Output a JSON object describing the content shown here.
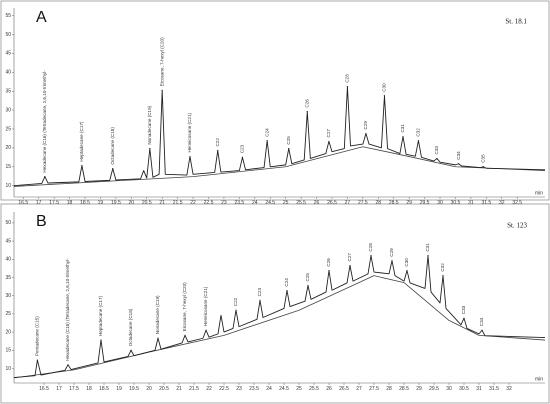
{
  "chart_data": [
    {
      "type": "line",
      "title": "A",
      "subtitle": "St. 18.1",
      "xlabel": "min",
      "xlim": [
        16.2,
        33.4
      ],
      "ylim": [
        7,
        57
      ],
      "xticks": [
        16.5,
        17,
        17.5,
        18,
        18.5,
        19,
        19.5,
        20,
        20.5,
        21,
        21.5,
        22,
        22.5,
        23,
        23.5,
        24,
        24.5,
        25,
        25.5,
        26,
        26.5,
        27,
        27.5,
        28,
        28.5,
        29,
        29.5,
        30,
        30.5,
        31,
        31.5,
        32,
        32.5
      ],
      "yticks": [
        10,
        15,
        20,
        25,
        30,
        35,
        40,
        45,
        50,
        55
      ],
      "x": [
        16.2,
        17.1,
        17.2,
        17.3,
        18.3,
        18.4,
        18.5,
        19.3,
        19.4,
        19.5,
        20.3,
        20.4,
        20.5,
        20.6,
        20.7,
        20.9,
        21.0,
        21.1,
        21.8,
        21.9,
        22.0,
        22.7,
        22.8,
        22.9,
        23.5,
        23.6,
        23.7,
        24.3,
        24.4,
        24.5,
        25.0,
        25.1,
        25.2,
        25.6,
        25.7,
        25.8,
        26.3,
        26.4,
        26.5,
        26.9,
        27.0,
        27.1,
        27.5,
        27.6,
        27.7,
        28.1,
        28.2,
        28.3,
        28.7,
        28.8,
        28.9,
        29.2,
        29.3,
        29.4,
        29.8,
        29.9,
        30.0,
        30.5,
        30.6,
        30.7,
        31.3,
        31.4,
        31.5,
        33.4
      ],
      "series": [
        {
          "color": "#222222",
          "values": [
            10.0,
            10.6,
            12.4,
            10.7,
            11.0,
            15.3,
            11.1,
            11.4,
            14.5,
            11.5,
            11.8,
            14.0,
            12.0,
            19.8,
            12.2,
            13.0,
            35.2,
            13.0,
            12.8,
            17.7,
            13.0,
            13.5,
            19.3,
            13.6,
            14.0,
            17.5,
            14.2,
            14.8,
            21.9,
            15.0,
            15.5,
            19.8,
            15.8,
            16.8,
            29.6,
            17.2,
            18.5,
            21.7,
            19.0,
            19.8,
            36.2,
            20.5,
            21.0,
            23.8,
            21.0,
            20.0,
            33.8,
            19.8,
            18.5,
            23.0,
            18.3,
            17.8,
            21.9,
            17.5,
            16.5,
            17.2,
            16.2,
            15.5,
            15.8,
            15.2,
            14.8,
            15.0,
            14.6,
            14.2
          ]
        }
      ],
      "baseline": {
        "color": "#444444",
        "x": [
          16.2,
          22,
          25,
          27.5,
          29,
          30.5,
          33.4
        ],
        "values": [
          9.8,
          12.4,
          15,
          20.3,
          17.7,
          15,
          14
        ]
      },
      "peaks": [
        {
          "label": "Hexadecane (C16) (Tetradecane, 2,6,10-trimethyl-",
          "x": 17.2,
          "y": 12.4
        },
        {
          "label": "Heptadecane (C17)",
          "x": 18.4,
          "y": 15.3
        },
        {
          "label": "Octadecane (C18)",
          "x": 19.4,
          "y": 14.5
        },
        {
          "label": "Nonadecane (C19)",
          "x": 20.6,
          "y": 19.8
        },
        {
          "label": "Eicosane, 7-hexyl (C20)",
          "x": 21.0,
          "y": 35.2
        },
        {
          "label": "Heneicosane (C21)",
          "x": 21.9,
          "y": 17.7
        },
        {
          "label": "C22",
          "x": 22.8,
          "y": 19.3
        },
        {
          "label": "C23",
          "x": 23.6,
          "y": 17.5
        },
        {
          "label": "C24",
          "x": 24.4,
          "y": 21.9
        },
        {
          "label": "C25",
          "x": 25.1,
          "y": 19.8
        },
        {
          "label": "C26",
          "x": 25.7,
          "y": 29.6
        },
        {
          "label": "C27",
          "x": 26.4,
          "y": 21.7
        },
        {
          "label": "C28",
          "x": 27.0,
          "y": 36.2
        },
        {
          "label": "C29",
          "x": 27.6,
          "y": 23.8
        },
        {
          "label": "C30",
          "x": 28.2,
          "y": 33.8
        },
        {
          "label": "C31",
          "x": 28.8,
          "y": 23.0
        },
        {
          "label": "C32",
          "x": 29.3,
          "y": 21.9
        },
        {
          "label": "C33",
          "x": 29.9,
          "y": 17.2
        },
        {
          "label": "C34",
          "x": 30.6,
          "y": 15.8
        },
        {
          "label": "C35",
          "x": 31.4,
          "y": 15.0
        }
      ]
    },
    {
      "type": "line",
      "title": "B",
      "subtitle": "St. 123",
      "xlabel": "min",
      "xlim": [
        15.5,
        33.2
      ],
      "ylim": [
        6,
        53
      ],
      "xticks": [
        16.5,
        17,
        17.5,
        18,
        18.5,
        19,
        19.5,
        20,
        20.5,
        21,
        21.5,
        22,
        22.5,
        23,
        23.5,
        24,
        24.5,
        25,
        25.5,
        26,
        26.5,
        27,
        27.5,
        28,
        28.5,
        29,
        29.5,
        30,
        30.5,
        31,
        31.5,
        32
      ],
      "yticks": [
        10,
        15,
        20,
        25,
        30,
        35,
        40,
        45,
        50
      ],
      "x": [
        15.5,
        16.2,
        16.28,
        16.4,
        17.2,
        17.3,
        17.4,
        18.3,
        18.4,
        18.5,
        19.3,
        19.4,
        19.5,
        20.2,
        20.3,
        20.4,
        21.1,
        21.2,
        21.3,
        21.8,
        21.9,
        22.0,
        22.3,
        22.4,
        22.5,
        22.8,
        22.9,
        23.0,
        23.6,
        23.7,
        23.8,
        24.5,
        24.6,
        24.7,
        25.2,
        25.3,
        25.4,
        25.9,
        26.0,
        26.1,
        26.6,
        26.7,
        26.8,
        27.3,
        27.4,
        27.5,
        28.0,
        28.1,
        28.2,
        28.5,
        28.6,
        28.7,
        29.2,
        29.3,
        29.4,
        29.7,
        29.8,
        29.9,
        30.4,
        30.5,
        30.6,
        31.0,
        31.1,
        31.2,
        33.2
      ],
      "series": [
        {
          "color": "#222222",
          "values": [
            7.5,
            8.0,
            12.3,
            8.2,
            9.5,
            11.0,
            9.7,
            11.5,
            17.8,
            11.8,
            13.3,
            15.0,
            13.5,
            15.0,
            18.3,
            15.3,
            17.0,
            19.1,
            17.3,
            18.3,
            20.5,
            18.6,
            19.5,
            24.6,
            20.0,
            21.0,
            26.0,
            21.5,
            23.5,
            28.7,
            24.0,
            26.5,
            31.4,
            27.0,
            28.5,
            32.8,
            29.0,
            31.0,
            36.9,
            31.5,
            33.5,
            38.3,
            34.0,
            36.0,
            41.0,
            36.5,
            36.0,
            39.6,
            35.5,
            34.0,
            36.9,
            33.5,
            32.0,
            41.0,
            31.0,
            28.0,
            35.5,
            26.5,
            22.0,
            23.8,
            21.0,
            19.5,
            20.5,
            19.0,
            18.5
          ]
        }
      ],
      "baseline": {
        "color": "#444444",
        "x": [
          15.5,
          17.5,
          20,
          22.5,
          25,
          27.5,
          28.5,
          30,
          31,
          33.2
        ],
        "values": [
          7.4,
          9.6,
          14.5,
          19.1,
          26,
          35.5,
          33.6,
          23.2,
          19.1,
          17.8
        ]
      },
      "peaks": [
        {
          "label": "Pentadecane (C15)",
          "x": 16.28,
          "y": 12.3
        },
        {
          "label": "Hexadecane (C16) (Tetradecane, 2,6,10-trimethyl-",
          "x": 17.3,
          "y": 11.0
        },
        {
          "label": "Heptadecane (C17)",
          "x": 18.4,
          "y": 17.8
        },
        {
          "label": "Octadecane (C18)",
          "x": 19.4,
          "y": 15.0
        },
        {
          "label": "Nonadecane (C19)",
          "x": 20.3,
          "y": 18.3
        },
        {
          "label": "Eicosane, 7-hexyl (C20)",
          "x": 21.2,
          "y": 19.1
        },
        {
          "label": "Heneicosane (C21)",
          "x": 21.9,
          "y": 20.5
        },
        {
          "label": "C22",
          "x": 22.9,
          "y": 26.0
        },
        {
          "label": "C23",
          "x": 23.7,
          "y": 28.7
        },
        {
          "label": "C24",
          "x": 24.6,
          "y": 31.4
        },
        {
          "label": "C25",
          "x": 25.3,
          "y": 32.8
        },
        {
          "label": "C26",
          "x": 26.0,
          "y": 36.9
        },
        {
          "label": "C27",
          "x": 26.7,
          "y": 38.3
        },
        {
          "label": "C28",
          "x": 27.4,
          "y": 41.0
        },
        {
          "label": "C29",
          "x": 28.1,
          "y": 39.6
        },
        {
          "label": "C30",
          "x": 28.6,
          "y": 36.9
        },
        {
          "label": "C31",
          "x": 29.3,
          "y": 41.0
        },
        {
          "label": "C32",
          "x": 29.8,
          "y": 35.5
        },
        {
          "label": "C33",
          "x": 30.5,
          "y": 23.8
        },
        {
          "label": "C34",
          "x": 31.1,
          "y": 20.5
        }
      ]
    }
  ]
}
